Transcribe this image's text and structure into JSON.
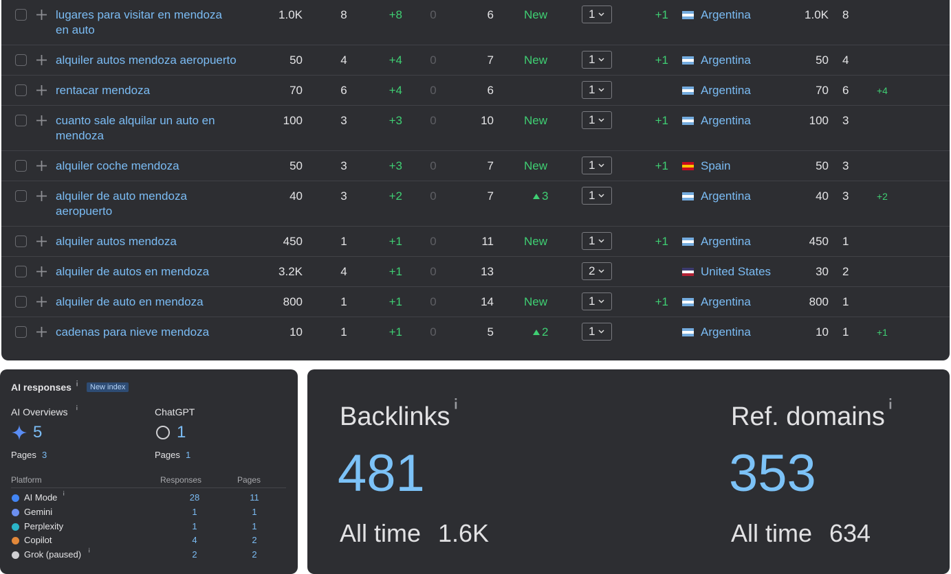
{
  "keywords": {
    "rows": [
      {
        "keyword": "lugares para visitar en mendoza en auto",
        "volume": "1.0K",
        "kd": "8",
        "change": "+8",
        "zero": "0",
        "position": "6",
        "status": "New",
        "rank": "1",
        "delta": "+1",
        "flag": [
          "#74acdf",
          "#ffffff",
          "#74acdf"
        ],
        "country": "Argentina",
        "traffic": "1.0K",
        "count": "8"
      },
      {
        "keyword": "alquiler autos mendoza aeropuerto",
        "volume": "50",
        "kd": "4",
        "change": "+4",
        "zero": "0",
        "position": "7",
        "status": "New",
        "rank": "1",
        "delta": "+1",
        "flag": [
          "#74acdf",
          "#ffffff",
          "#74acdf"
        ],
        "country": "Argentina",
        "traffic": "50",
        "count": "4"
      },
      {
        "keyword": "rentacar mendoza",
        "volume": "70",
        "kd": "6",
        "change": "+4",
        "zero": "0",
        "position": "6",
        "rank": "1",
        "flag": [
          "#74acdf",
          "#ffffff",
          "#74acdf"
        ],
        "country": "Argentina",
        "traffic": "70",
        "count": "6",
        "extra": "+4"
      },
      {
        "keyword": "cuanto sale alquilar un auto en mendoza",
        "volume": "100",
        "kd": "3",
        "change": "+3",
        "zero": "0",
        "position": "10",
        "status": "New",
        "rank": "1",
        "delta": "+1",
        "flag": [
          "#74acdf",
          "#ffffff",
          "#74acdf"
        ],
        "country": "Argentina",
        "traffic": "100",
        "count": "3"
      },
      {
        "keyword": "alquiler coche mendoza",
        "volume": "50",
        "kd": "3",
        "change": "+3",
        "zero": "0",
        "position": "7",
        "status": "New",
        "rank": "1",
        "delta": "+1",
        "flag": [
          "#c60b1e",
          "#ffc400",
          "#c60b1e"
        ],
        "country": "Spain",
        "traffic": "50",
        "count": "3"
      },
      {
        "keyword": "alquiler de auto mendoza aeropuerto",
        "volume": "40",
        "kd": "3",
        "change": "+2",
        "zero": "0",
        "position": "7",
        "rise": "3",
        "rank": "1",
        "flag": [
          "#74acdf",
          "#ffffff",
          "#74acdf"
        ],
        "country": "Argentina",
        "traffic": "40",
        "count": "3",
        "extra": "+2"
      },
      {
        "keyword": "alquiler autos mendoza",
        "volume": "450",
        "kd": "1",
        "change": "+1",
        "zero": "0",
        "position": "11",
        "status": "New",
        "rank": "1",
        "delta": "+1",
        "flag": [
          "#74acdf",
          "#ffffff",
          "#74acdf"
        ],
        "country": "Argentina",
        "traffic": "450",
        "count": "1"
      },
      {
        "keyword": "alquiler de autos en mendoza",
        "volume": "3.2K",
        "kd": "4",
        "change": "+1",
        "zero": "0",
        "position": "13",
        "rank": "2",
        "flag": [
          "#3c3b6e",
          "#ffffff",
          "#b22234"
        ],
        "country": "United States",
        "traffic": "30",
        "count": "2"
      },
      {
        "keyword": "alquiler de auto en mendoza",
        "volume": "800",
        "kd": "1",
        "change": "+1",
        "zero": "0",
        "position": "14",
        "status": "New",
        "rank": "1",
        "delta": "+1",
        "flag": [
          "#74acdf",
          "#ffffff",
          "#74acdf"
        ],
        "country": "Argentina",
        "traffic": "800",
        "count": "1"
      },
      {
        "keyword": "cadenas para nieve mendoza",
        "volume": "10",
        "kd": "1",
        "change": "+1",
        "zero": "0",
        "position": "5",
        "rise": "2",
        "rank": "1",
        "flag": [
          "#74acdf",
          "#ffffff",
          "#74acdf"
        ],
        "country": "Argentina",
        "traffic": "10",
        "count": "1",
        "extra": "+1"
      }
    ]
  },
  "ai": {
    "title": "AI responses",
    "badge": "New index",
    "summary": [
      {
        "label": "AI Overviews",
        "value": "5",
        "pages_label": "Pages",
        "pages": "3"
      },
      {
        "label": "ChatGPT",
        "value": "1",
        "pages_label": "Pages",
        "pages": "1"
      }
    ],
    "table": {
      "headers": [
        "Platform",
        "Responses",
        "Pages"
      ],
      "rows": [
        [
          "AI Mode",
          "28",
          "11"
        ],
        [
          "Gemini",
          "1",
          "1"
        ],
        [
          "Perplexity",
          "1",
          "1"
        ],
        [
          "Copilot",
          "4",
          "2"
        ],
        [
          "Grok (paused)",
          "2",
          "2"
        ]
      ]
    }
  },
  "metrics": [
    {
      "label": "Backlinks",
      "value": "481",
      "sub_label": "All time",
      "sub_value": "1.6K"
    },
    {
      "label": "Ref. domains",
      "value": "353",
      "sub_label": "All time",
      "sub_value": "634"
    }
  ]
}
